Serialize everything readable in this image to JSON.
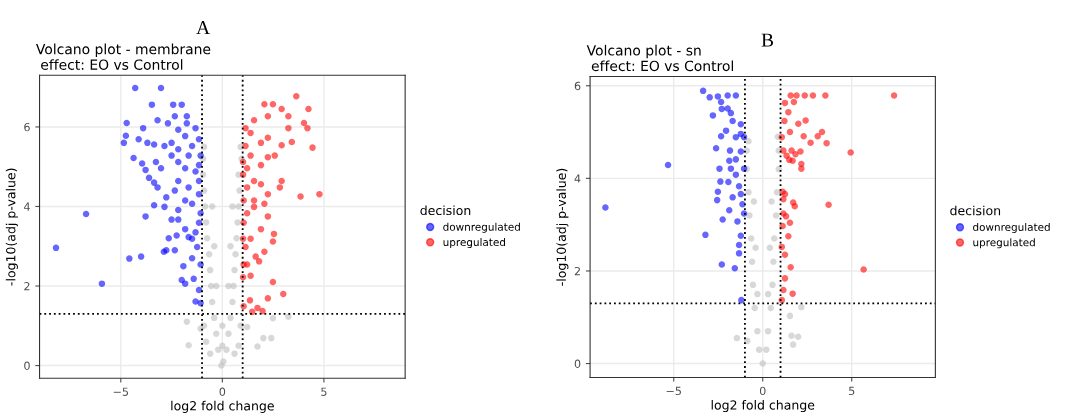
{
  "chart_data": [
    {
      "type": "scatter",
      "title": "Volcano plot - membrane\n effect: EO vs Control",
      "xlabel": "log2 fold change",
      "ylabel": "-log10(adj p-value)",
      "legend_title": "decision",
      "legend": "right",
      "grid": true,
      "marker": "circle",
      "annotations": [
        "A"
      ],
      "xlim": [
        -9,
        9
      ],
      "ylim": [
        -0.32,
        7.3
      ],
      "xticks": [
        -5,
        0,
        5
      ],
      "yticks": [
        0,
        2,
        4,
        6
      ],
      "ref_lines": [
        {
          "axis": "x",
          "value": -1,
          "color": "#000000",
          "line_style": "dotted"
        },
        {
          "axis": "x",
          "value": 1,
          "color": "#000000",
          "line_style": "dotted"
        },
        {
          "axis": "y",
          "value": 1.3,
          "color": "#000000",
          "line_style": "dotted"
        }
      ],
      "series": [
        {
          "color": "#bebebe",
          "x": [
            -0.05,
            0.05,
            -0.2,
            0.2,
            -0.3,
            0.3,
            -0.4,
            0.4,
            -0.5,
            0.5,
            -0.55,
            0.55,
            -0.6,
            0.6,
            -0.65,
            0.65,
            -0.75,
            0.7,
            -0.8,
            0.75,
            -0.85,
            0.8,
            -0.9,
            0.85,
            -0.95,
            0.8,
            -0.95,
            0.95,
            -0.9,
            0.9,
            -0.6,
            0.6,
            -0.8,
            0.8,
            -0.9,
            0.9,
            -0.3,
            0.3,
            -0.4,
            0.4,
            -0.5,
            0.5,
            0,
            0,
            -1.75,
            -1.66,
            -1.07,
            1.22,
            2.02,
            2.41,
            1.73,
            2.49,
            3.25
          ],
          "values": [
            0,
            0.1,
            0.4,
            0.4,
            0.8,
            0.8,
            1.2,
            1.2,
            1.6,
            1.6,
            2.0,
            2.0,
            2.4,
            2.4,
            2.8,
            2.8,
            3.2,
            3.2,
            3.6,
            3.6,
            4.0,
            4.0,
            4.4,
            4.4,
            4.8,
            4.8,
            5.2,
            5.2,
            5.5,
            5.5,
            0.3,
            0.3,
            0.6,
            0.5,
            1.0,
            1.0,
            2,
            2,
            3,
            3,
            4,
            4,
            0.5,
            1,
            1.1,
            0.51,
            0.93,
            0.97,
            0.69,
            0.69,
            0.48,
            1.19,
            1.23
          ]
        },
        {
          "name": "downregulated",
          "color": "#0000ff",
          "x": [
            -4.29,
            -3.02,
            -3.47,
            -2.42,
            -2.0,
            -4.71,
            -4.85,
            -4.75,
            -4.12,
            -3.9,
            -4.37,
            -3.95,
            -3.78,
            -3.61,
            -3.36,
            -3.19,
            -3.36,
            -3.78,
            -6.71,
            -8.19,
            -5.93,
            -4.58,
            -4.0,
            -2.88,
            -2.76,
            -2.34,
            -2.64,
            -2.25,
            -2.5,
            -2.17,
            -2.76,
            -2.34,
            -1.92,
            -2.0,
            -1.83,
            -1.41,
            -1.32,
            -1.15,
            -1.49,
            -1.24,
            -1.66,
            -1.32,
            -1.15,
            -1.83,
            -1.07,
            -1.49,
            -1.83,
            -1.15,
            -1.66,
            -2.17,
            -1.15,
            -1.32,
            -1.83,
            -1.15,
            -2.17,
            -2.5,
            -1.66,
            -1.07,
            -2.17,
            -1.49,
            -2.5,
            -1.15,
            -1.83,
            -2.17,
            -1.32,
            -2.68,
            -1.75,
            -3.19,
            -2.34,
            -1.75,
            -2.85,
            -3.36,
            -3.69,
            -3.02,
            -3.27,
            -2.17,
            -2.85,
            -1.07,
            -1.07,
            -1.49
          ],
          "values": [
            6.98,
            6.98,
            6.56,
            6.56,
            6.56,
            6.1,
            5.6,
            5.78,
            5.69,
            5.97,
            5.22,
            5.08,
            4.92,
            4.72,
            4.6,
            4.48,
            4.03,
            3.75,
            3.81,
            2.96,
            2.06,
            2.69,
            2.74,
            2.86,
            2.9,
            2.9,
            3.2,
            3.27,
            3.67,
            3.67,
            4.23,
            4.4,
            2.5,
            2.15,
            2.06,
            2.18,
            1.61,
            1.9,
            2.7,
            2.98,
            3.23,
            3.35,
            3.59,
            3.43,
            3.83,
            4.07,
            4.15,
            4.31,
            4.48,
            4.64,
            4.64,
            4.88,
            4.96,
            5.04,
            5.12,
            5.28,
            5.28,
            5.28,
            5.44,
            5.52,
            5.6,
            5.69,
            5.77,
            5.93,
            5.97,
            6.09,
            6.09,
            6.17,
            6.27,
            6.27,
            5.52,
            5.56,
            5.6,
            4.96,
            5.12,
            3.91,
            3.99,
            2.54,
            1.57,
            3.19
          ]
        },
        {
          "name": "upregulated",
          "color": "#ff0000",
          "x": [
            3.64,
            2.07,
            2.49,
            2.92,
            4.24,
            2.24,
            3.25,
            1.56,
            3.25,
            4.02,
            4.19,
            4.44,
            4.78,
            3.85,
            3.42,
            2.92,
            2.58,
            2.92,
            2.83,
            2.24,
            2.07,
            2.24,
            1.56,
            1.22,
            1.9,
            2.54,
            2.49,
            1.81,
            1.64,
            1.22,
            1.39,
            2.49,
            3.0,
            2.24,
            1.36,
            1.47,
            1.73,
            1.98,
            1.05,
            1.02,
            1.14,
            1.39,
            1.05,
            1.22,
            1.05,
            1.56,
            1.22,
            1.9,
            1.39,
            1.14,
            1.9,
            2.24,
            1.39,
            1.14,
            2.24,
            1.02,
            1.02,
            1.56,
            1.9,
            2.07,
            1.02,
            1.05
          ],
          "values": [
            6.77,
            6.57,
            6.57,
            6.45,
            6.45,
            6.27,
            6.27,
            6.17,
            5.97,
            6.1,
            5.97,
            5.48,
            4.31,
            4.25,
            5.62,
            5.54,
            5.28,
            4.64,
            4.48,
            4.31,
            4.07,
            3.75,
            3.99,
            4.48,
            3.43,
            3.31,
            3.12,
            2.62,
            2.74,
            2.54,
            2.26,
            2.1,
            1.8,
            1.69,
            1.64,
            1.35,
            1.45,
            1.37,
            1.49,
            2.22,
            2.98,
            3.19,
            3.59,
            3.83,
            4.15,
            4.64,
            4.96,
            5.04,
            5.28,
            5.52,
            5.6,
            5.73,
            5.85,
            5.97,
            5.24,
            5.12,
            4.8,
            4.15,
            4.56,
            2.86,
            3.19,
            2.54
          ]
        }
      ]
    },
    {
      "type": "scatter",
      "title": "Volcano plot - sn\n effect: EO vs Control",
      "xlabel": "log2 fold change",
      "ylabel": "-log10(adj p-value)",
      "legend_title": "decision",
      "legend": "right",
      "grid": true,
      "marker": "circle",
      "annotations": [
        "B"
      ],
      "xlim": [
        -9.7,
        9.7
      ],
      "ylim": [
        -0.3,
        6.2
      ],
      "xticks": [
        -5,
        0,
        5
      ],
      "yticks": [
        0,
        2,
        4,
        6
      ],
      "ref_lines": [
        {
          "axis": "x",
          "value": -1,
          "color": "#000000",
          "line_style": "dotted"
        },
        {
          "axis": "x",
          "value": 1,
          "color": "#000000",
          "line_style": "dotted"
        },
        {
          "axis": "y",
          "value": 1.3,
          "color": "#000000",
          "line_style": "dotted"
        }
      ],
      "series": [
        {
          "color": "#bebebe",
          "x": [
            0,
            -0.2,
            0.2,
            -0.3,
            0.3,
            -0.45,
            0.45,
            -0.55,
            0.55,
            -0.6,
            0.6,
            -0.65,
            0.65,
            -0.75,
            0.75,
            -0.8,
            0.8,
            -0.9,
            0.9,
            -0.9,
            0.9,
            -0.8,
            0.85,
            -0.3,
            0.3,
            -0.4,
            0.4,
            -0.5,
            0.5,
            2.17,
            1.53,
            1.62,
            1.99,
            1.71,
            -1.45,
            -0.87
          ],
          "values": [
            0,
            0.3,
            0.3,
            0.7,
            0.7,
            1.2,
            1.2,
            1.7,
            1.7,
            2.2,
            2.2,
            2.7,
            2.7,
            3.2,
            3.2,
            3.7,
            3.7,
            4.2,
            4.2,
            4.6,
            4.6,
            4.8,
            4.9,
            1.5,
            1.5,
            2.5,
            2.5,
            3.5,
            3.5,
            1.22,
            1.03,
            0.6,
            0.58,
            0.41,
            0.55,
            0.49
          ]
        },
        {
          "name": "downregulated",
          "color": "#0000ff",
          "x": [
            -3.35,
            -2.98,
            -2.52,
            -1.97,
            -1.51,
            -2.34,
            -1.97,
            -2.3,
            -2.8,
            -1.79,
            -1.69,
            -1.23,
            -2.06,
            -2.34,
            -1.51,
            -1.23,
            -2.62,
            -1.84,
            -1.23,
            -5.32,
            -1.88,
            -1.51,
            -2.43,
            -1.79,
            -1.51,
            -2.38,
            -1.93,
            -1.33,
            -2.52,
            -2.56,
            -1.23,
            -1.69,
            -1.14,
            -8.84,
            -1.88,
            -2.25,
            -1.42,
            -1.23,
            -3.22,
            -1.33,
            -1.33,
            -2.3,
            -1.57,
            -1.2,
            -1.05,
            -1.05,
            -1.05
          ],
          "values": [
            5.89,
            5.75,
            5.77,
            5.79,
            5.79,
            5.65,
            5.51,
            5.5,
            5.36,
            5.41,
            5.24,
            5.17,
            5.03,
            4.91,
            4.89,
            4.96,
            4.65,
            4.6,
            4.58,
            4.29,
            4.38,
            4.41,
            4.21,
            4.21,
            4.08,
            3.93,
            3.92,
            3.83,
            3.71,
            3.53,
            3.66,
            3.59,
            3.44,
            3.37,
            3.31,
            3.11,
            3.07,
            2.76,
            2.78,
            2.56,
            2.38,
            2.14,
            2.06,
            1.37,
            3.24,
            4.21,
            4.89
          ]
        },
        {
          "name": "upregulated",
          "color": "#ff0000",
          "x": [
            7.38,
            3.52,
            2.82,
            2.36,
            1.9,
            1.57,
            1.25,
            1.75,
            1.44,
            2.41,
            2.0,
            1.22,
            3.33,
            3.09,
            2.3,
            1.53,
            1.07,
            2.69,
            3.59,
            4.94,
            1.16,
            1.62,
            2.12,
            1.34,
            1.84,
            1.49,
            1.68,
            2.17,
            2.17,
            1.12,
            1.25,
            1.16,
            1.71,
            1.8,
            3.7,
            1.16,
            1.31,
            1.53,
            1.12,
            1.44,
            1.07,
            1.25,
            1.57,
            5.67,
            1.25,
            1.16,
            1.68,
            1.07
          ],
          "values": [
            5.79,
            5.79,
            5.79,
            5.79,
            5.79,
            5.79,
            5.63,
            5.65,
            5.43,
            5.25,
            5.18,
            5.24,
            5.0,
            4.91,
            4.91,
            5.0,
            4.89,
            4.77,
            4.76,
            4.56,
            4.6,
            4.6,
            4.58,
            4.49,
            4.52,
            4.4,
            4.38,
            4.31,
            4.21,
            3.71,
            3.66,
            3.55,
            3.48,
            3.4,
            3.43,
            3.24,
            3.18,
            3.04,
            2.97,
            2.75,
            2.52,
            2.35,
            2.08,
            2.03,
            1.84,
            1.59,
            1.51,
            1.37
          ]
        }
      ]
    }
  ]
}
